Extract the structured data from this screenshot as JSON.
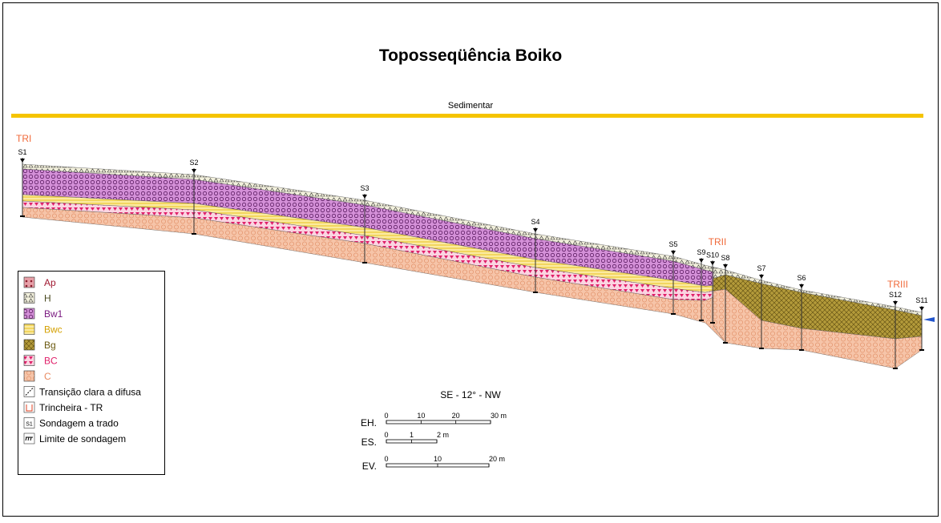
{
  "header": {
    "title": "Toposseqüência Boiko",
    "subtitle": "Sedimentar"
  },
  "trenches": [
    "TRI",
    "TRII",
    "TRIII"
  ],
  "soundings": [
    "S1",
    "S2",
    "S3",
    "S4",
    "S5",
    "S9",
    "S10",
    "S8",
    "S7",
    "S6",
    "S12",
    "S11"
  ],
  "legend": {
    "horizons": [
      "Ap",
      "H",
      "Bw1",
      "Bwc",
      "Bg",
      "BC",
      "C"
    ],
    "symbols": [
      {
        "icon": null,
        "label": "Transição clara a difusa"
      },
      {
        "icon": null,
        "label": "Trincheira - TR"
      },
      {
        "icon": "S1",
        "label": "Sondagem a trado"
      },
      {
        "icon": null,
        "label": "Limite de sondagem"
      }
    ]
  },
  "orientation": "SE - 12° - NW",
  "scales": [
    {
      "label": "EH.",
      "ticks": [
        "0",
        "10",
        "20",
        "30 m"
      ]
    },
    {
      "label": "ES.",
      "ticks": [
        "0",
        "1",
        "2 m"
      ]
    },
    {
      "label": "EV.",
      "ticks": [
        "0",
        "10",
        "20 m"
      ]
    }
  ]
}
